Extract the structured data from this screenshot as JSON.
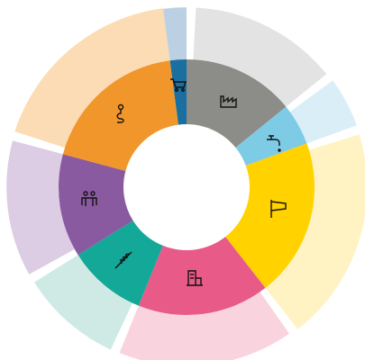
{
  "chart_data": {
    "type": "sunburst",
    "values": [
      7.5,
      51,
      19,
      72,
      60,
      36,
      47,
      67.5
    ],
    "outer_values": [
      98,
      98,
      100,
      99,
      96,
      97,
      98,
      99
    ],
    "colors": [
      "#1a6fa0",
      "#8c8c88",
      "#7ecbe6",
      "#ffd200",
      "#e85a87",
      "#13a898",
      "#8a5aa0",
      "#f0962a"
    ],
    "outer_colors": [
      "#bcd0e3",
      "#e3e3e3",
      "#daeef7",
      "#fff3c4",
      "#f9d3de",
      "#cfeae5",
      "#dccde5",
      "#fbdcb4"
    ],
    "outer_max": 100
  }
}
